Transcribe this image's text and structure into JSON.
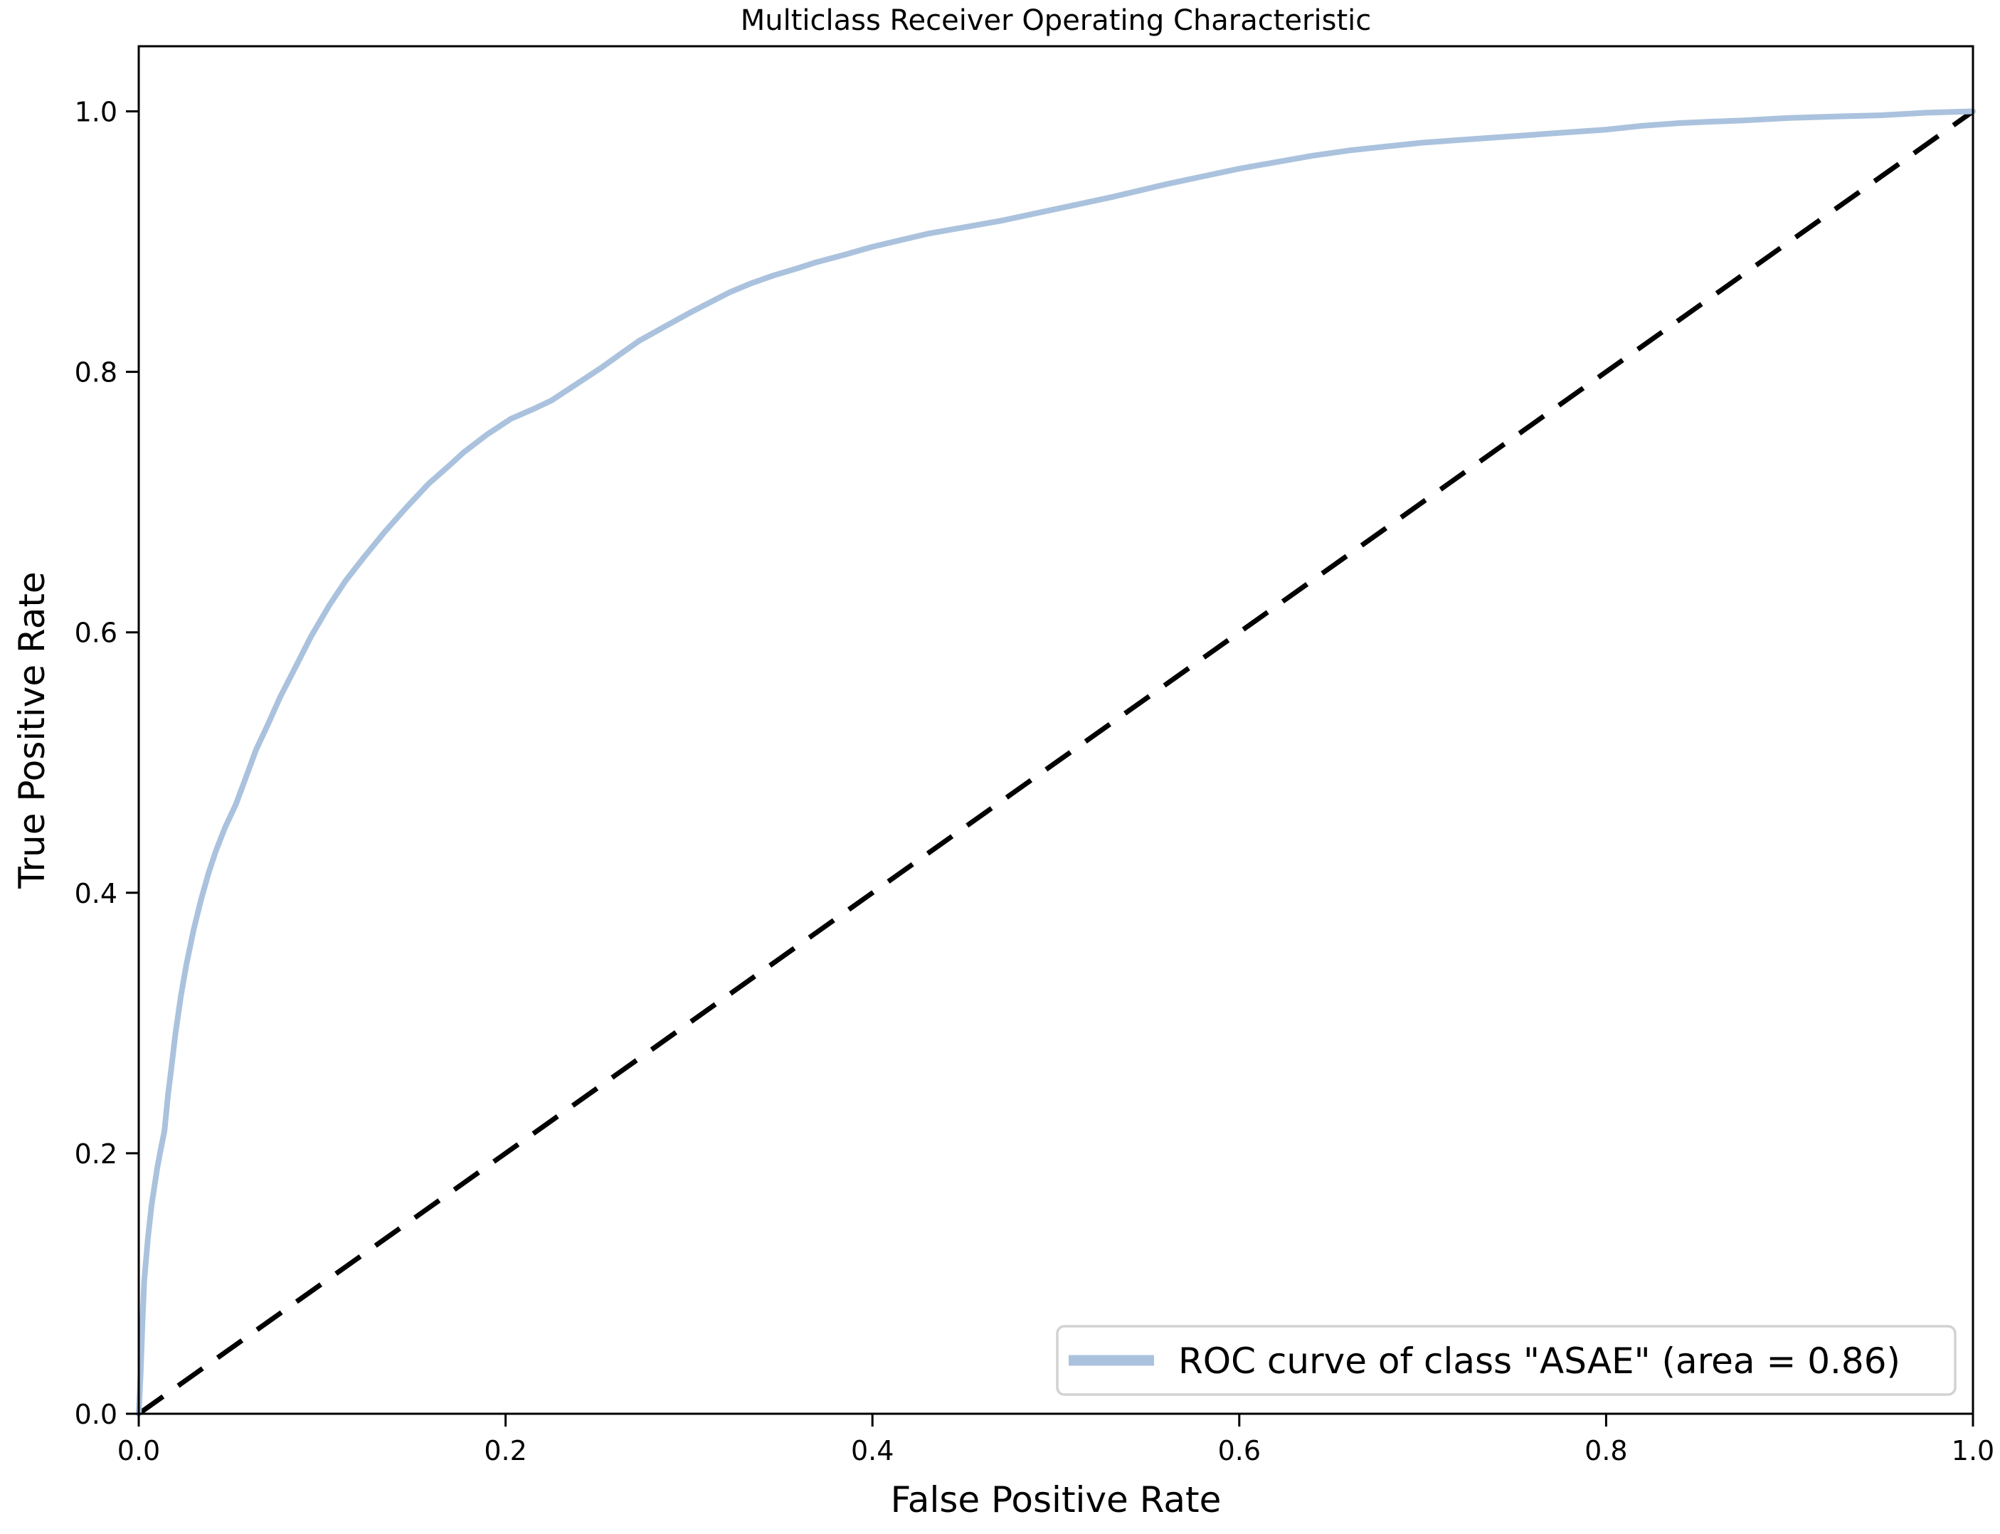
{
  "chart_data": {
    "type": "line",
    "title": "Multiclass Receiver Operating Characteristic",
    "xlabel": "False Positive Rate",
    "ylabel": "True Positive Rate",
    "xlim": [
      0.0,
      1.0
    ],
    "ylim": [
      0.0,
      1.05
    ],
    "grid": false,
    "x_ticks": {
      "values": [
        0.0,
        0.2,
        0.4,
        0.6,
        0.8,
        1.0
      ],
      "labels": [
        "0.0",
        "0.2",
        "0.4",
        "0.6",
        "0.8",
        "1.0"
      ]
    },
    "y_ticks": {
      "values": [
        0.0,
        0.2,
        0.4,
        0.6,
        0.8,
        1.0
      ],
      "labels": [
        "0.0",
        "0.2",
        "0.4",
        "0.6",
        "0.8",
        "1.0"
      ]
    },
    "legend": {
      "position": "lower right",
      "label": "ROC curve of class \"ASAE\" (area = 0.86)",
      "swatch_color": "#aac2dd",
      "frame_color": "#d2d2d2"
    },
    "colors": {
      "roc_curve": "#aac2dd",
      "chance_line": "#000000"
    },
    "series": [
      {
        "name": "ROC curve of class \"ASAE\"",
        "area": 0.86,
        "style": "solid",
        "color": "#aac2dd",
        "points": [
          [
            0.0,
            0.0
          ],
          [
            0.001,
            0.03
          ],
          [
            0.002,
            0.07
          ],
          [
            0.003,
            0.102
          ],
          [
            0.005,
            0.135
          ],
          [
            0.007,
            0.16
          ],
          [
            0.01,
            0.188
          ],
          [
            0.012,
            0.203
          ],
          [
            0.014,
            0.217
          ],
          [
            0.016,
            0.245
          ],
          [
            0.018,
            0.268
          ],
          [
            0.02,
            0.292
          ],
          [
            0.023,
            0.321
          ],
          [
            0.026,
            0.345
          ],
          [
            0.03,
            0.372
          ],
          [
            0.034,
            0.395
          ],
          [
            0.038,
            0.415
          ],
          [
            0.042,
            0.432
          ],
          [
            0.047,
            0.45
          ],
          [
            0.053,
            0.468
          ],
          [
            0.058,
            0.487
          ],
          [
            0.064,
            0.51
          ],
          [
            0.07,
            0.528
          ],
          [
            0.077,
            0.55
          ],
          [
            0.085,
            0.572
          ],
          [
            0.094,
            0.597
          ],
          [
            0.104,
            0.621
          ],
          [
            0.113,
            0.64
          ],
          [
            0.123,
            0.658
          ],
          [
            0.134,
            0.677
          ],
          [
            0.146,
            0.696
          ],
          [
            0.158,
            0.714
          ],
          [
            0.17,
            0.729
          ],
          [
            0.177,
            0.738
          ],
          [
            0.19,
            0.752
          ],
          [
            0.203,
            0.764
          ],
          [
            0.216,
            0.772
          ],
          [
            0.225,
            0.778
          ],
          [
            0.238,
            0.79
          ],
          [
            0.252,
            0.803
          ],
          [
            0.262,
            0.813
          ],
          [
            0.273,
            0.824
          ],
          [
            0.287,
            0.835
          ],
          [
            0.3,
            0.845
          ],
          [
            0.311,
            0.853
          ],
          [
            0.322,
            0.861
          ],
          [
            0.334,
            0.868
          ],
          [
            0.346,
            0.874
          ],
          [
            0.358,
            0.879
          ],
          [
            0.369,
            0.884
          ],
          [
            0.385,
            0.89
          ],
          [
            0.4,
            0.896
          ],
          [
            0.415,
            0.901
          ],
          [
            0.43,
            0.906
          ],
          [
            0.45,
            0.911
          ],
          [
            0.47,
            0.916
          ],
          [
            0.49,
            0.922
          ],
          [
            0.51,
            0.928
          ],
          [
            0.53,
            0.934
          ],
          [
            0.545,
            0.939
          ],
          [
            0.56,
            0.944
          ],
          [
            0.58,
            0.95
          ],
          [
            0.6,
            0.956
          ],
          [
            0.62,
            0.961
          ],
          [
            0.64,
            0.966
          ],
          [
            0.66,
            0.97
          ],
          [
            0.68,
            0.973
          ],
          [
            0.7,
            0.976
          ],
          [
            0.72,
            0.978
          ],
          [
            0.74,
            0.98
          ],
          [
            0.76,
            0.982
          ],
          [
            0.78,
            0.984
          ],
          [
            0.8,
            0.986
          ],
          [
            0.82,
            0.989
          ],
          [
            0.84,
            0.991
          ],
          [
            0.855,
            0.992
          ],
          [
            0.875,
            0.993
          ],
          [
            0.9,
            0.995
          ],
          [
            0.925,
            0.996
          ],
          [
            0.95,
            0.997
          ],
          [
            0.975,
            0.999
          ],
          [
            1.0,
            1.0
          ]
        ]
      },
      {
        "name": "chance-diagonal",
        "style": "dashed",
        "color": "#000000",
        "points": [
          [
            0.0,
            0.0
          ],
          [
            1.0,
            1.0
          ]
        ]
      }
    ]
  }
}
